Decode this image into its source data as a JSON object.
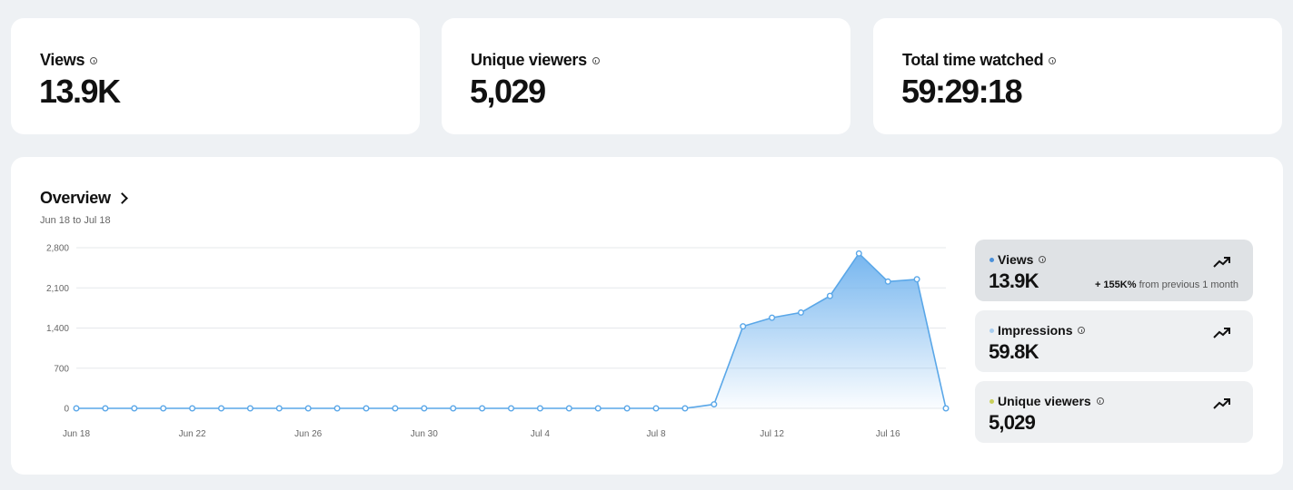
{
  "stats": [
    {
      "label": "Views",
      "value": "13.9K"
    },
    {
      "label": "Unique viewers",
      "value": "5,029"
    },
    {
      "label": "Total time watched",
      "value": "59:29:18"
    }
  ],
  "overview": {
    "title": "Overview",
    "date_range": "Jun 18 to Jul 18"
  },
  "metrics": [
    {
      "label": "Views",
      "value": "13.9K",
      "dot_color": "#4a90d9",
      "change_amount": "+ 155K%",
      "change_text": "from previous 1 month"
    },
    {
      "label": "Impressions",
      "value": "59.8K",
      "dot_color": "#a8cdef"
    },
    {
      "label": "Unique viewers",
      "value": "5,029",
      "dot_color": "#c8cf5a"
    }
  ],
  "chart_data": {
    "type": "area",
    "y_ticks": [
      "2,800",
      "2,100",
      "1,400",
      "700",
      "0"
    ],
    "ylim": [
      0,
      2800
    ],
    "x_tick_labels": [
      "Jun 18",
      "Jun 22",
      "Jun 26",
      "Jun 30",
      "Jul 4",
      "Jul 8",
      "Jul 12",
      "Jul 16"
    ],
    "x": [
      "Jun 18",
      "Jun 19",
      "Jun 20",
      "Jun 21",
      "Jun 22",
      "Jun 23",
      "Jun 24",
      "Jun 25",
      "Jun 26",
      "Jun 27",
      "Jun 28",
      "Jun 29",
      "Jun 30",
      "Jul 1",
      "Jul 2",
      "Jul 3",
      "Jul 4",
      "Jul 5",
      "Jul 6",
      "Jul 7",
      "Jul 8",
      "Jul 9",
      "Jul 10",
      "Jul 11",
      "Jul 12",
      "Jul 13",
      "Jul 14",
      "Jul 15",
      "Jul 16",
      "Jul 17",
      "Jul 18"
    ],
    "series": [
      {
        "values": [
          0,
          0,
          0,
          0,
          0,
          0,
          0,
          0,
          0,
          0,
          0,
          0,
          0,
          0,
          0,
          0,
          0,
          0,
          0,
          0,
          0,
          0,
          70,
          1430,
          1580,
          1670,
          1960,
          2700,
          2210,
          2250,
          0
        ]
      }
    ],
    "color": "#5aa7e8",
    "grid": true
  }
}
